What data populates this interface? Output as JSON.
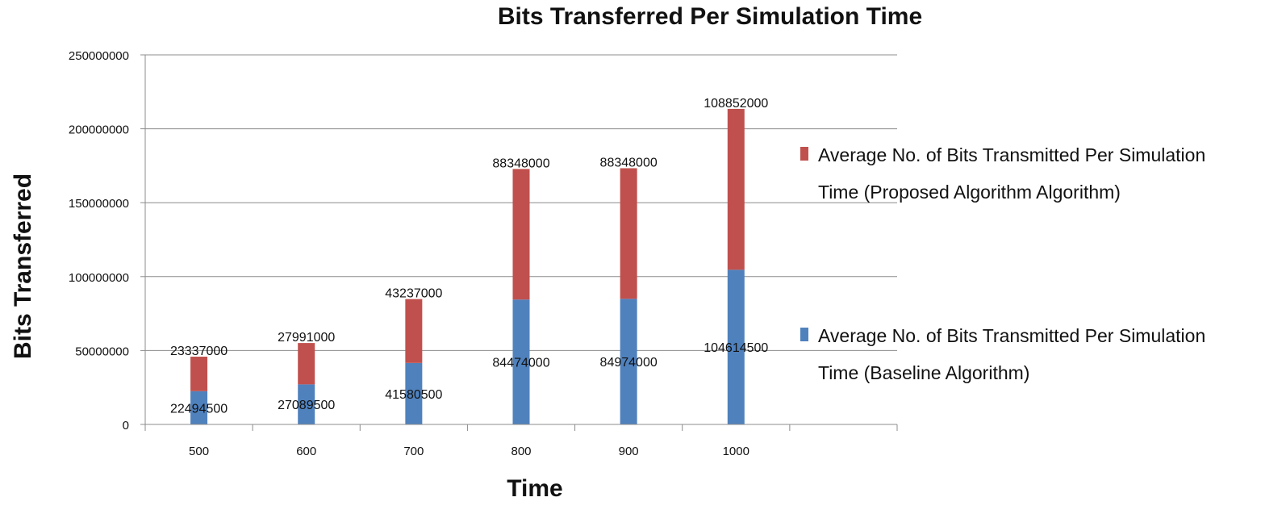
{
  "chart_data": {
    "type": "bar",
    "stacked": true,
    "title": "Bits Transferred Per Simulation Time",
    "xlabel": "Time",
    "ylabel": "Bits Transferred",
    "categories": [
      "500",
      "600",
      "700",
      "800",
      "900",
      "1000"
    ],
    "ylim": [
      0,
      250000000
    ],
    "yticks": [
      "0",
      "50000000",
      "100000000",
      "150000000",
      "200000000",
      "250000000"
    ],
    "grid": true,
    "legend_position": "right",
    "series": [
      {
        "name": "Average No. of Bits Transmitted Per Simulation Time (Baseline Algorithm)",
        "legend_lines": [
          "Average No. of Bits Transmitted Per Simulation",
          "Time (Baseline Algorithm)"
        ],
        "color": "#4f81bd",
        "values": [
          22494500,
          27089500,
          41580500,
          84474000,
          84974000,
          104614500
        ],
        "labels": [
          "22494500",
          "27089500",
          "41580500",
          "84474000",
          "84974000",
          "104614500"
        ]
      },
      {
        "name": "Average No. of Bits Transmitted Per Simulation Time (Proposed Algorithm Algorithm)",
        "legend_lines": [
          "Average No. of Bits Transmitted Per Simulation",
          "Time (Proposed Algorithm Algorithm)"
        ],
        "color": "#c0504d",
        "values": [
          23337000,
          27991000,
          43237000,
          88348000,
          88348000,
          108852000
        ],
        "labels": [
          "23337000",
          "27991000",
          "43237000",
          "88348000",
          "88348000",
          "108852000"
        ]
      }
    ]
  }
}
